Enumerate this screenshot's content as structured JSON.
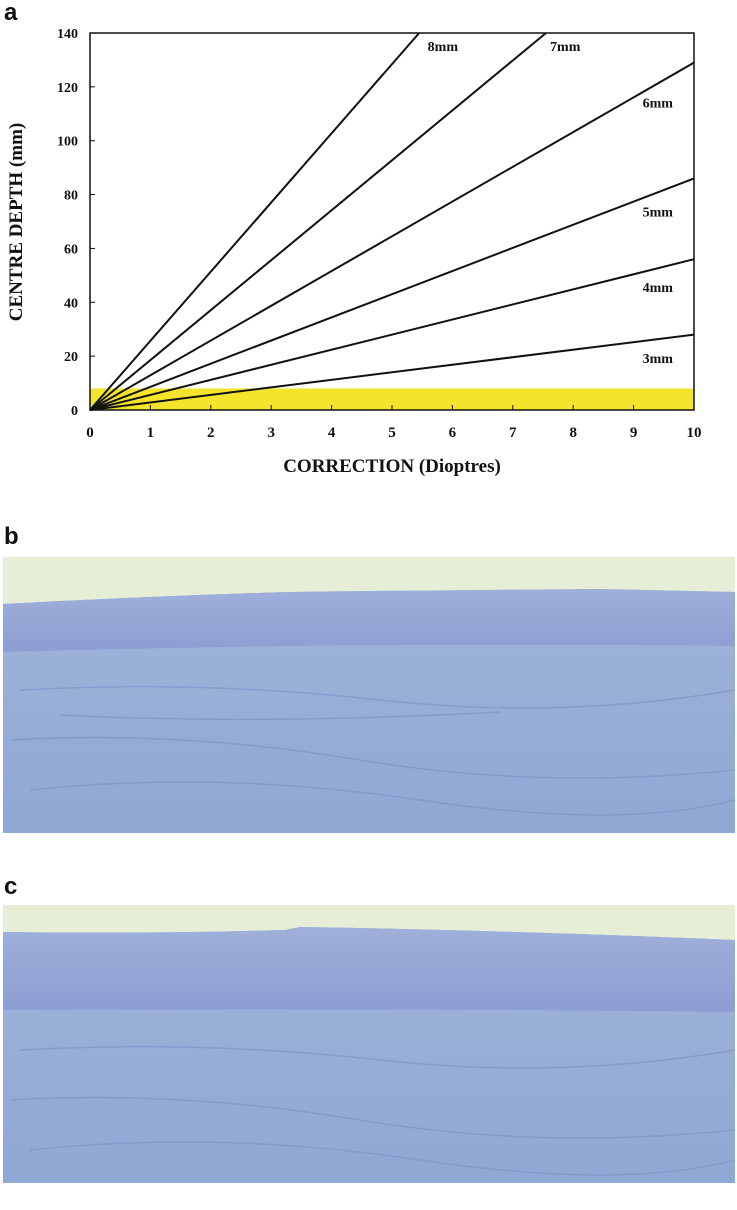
{
  "panel_labels": [
    "a",
    "b",
    "c"
  ],
  "chart_data": {
    "type": "line",
    "x_label": "CORRECTION (Dioptres)",
    "y_label": "CENTRE DEPTH  (mm)",
    "xlim": [
      0,
      10
    ],
    "xticks": [
      0,
      1,
      2,
      3,
      4,
      5,
      6,
      7,
      8,
      9,
      10
    ],
    "ylim": [
      0,
      140
    ],
    "yticks": [
      0,
      20,
      40,
      60,
      80,
      100,
      120,
      140
    ],
    "shaded_region": {
      "y": [
        0,
        8
      ],
      "color": "#f4e42c"
    },
    "series": [
      {
        "name": "3mm",
        "color": "#111111",
        "x": [
          0,
          10
        ],
        "values": [
          0,
          28
        ]
      },
      {
        "name": "4mm",
        "color": "#111111",
        "x": [
          0,
          10
        ],
        "values": [
          0,
          56
        ]
      },
      {
        "name": "5mm",
        "color": "#111111",
        "x": [
          0,
          10
        ],
        "values": [
          0,
          86
        ]
      },
      {
        "name": "6mm",
        "color": "#111111",
        "x": [
          0,
          10
        ],
        "values": [
          0,
          129
        ]
      },
      {
        "name": "7mm",
        "color": "#111111",
        "x": [
          0,
          7.55
        ],
        "values": [
          0,
          140
        ]
      },
      {
        "name": "8mm",
        "color": "#111111",
        "x": [
          0,
          5.45
        ],
        "values": [
          0,
          140
        ]
      }
    ]
  }
}
